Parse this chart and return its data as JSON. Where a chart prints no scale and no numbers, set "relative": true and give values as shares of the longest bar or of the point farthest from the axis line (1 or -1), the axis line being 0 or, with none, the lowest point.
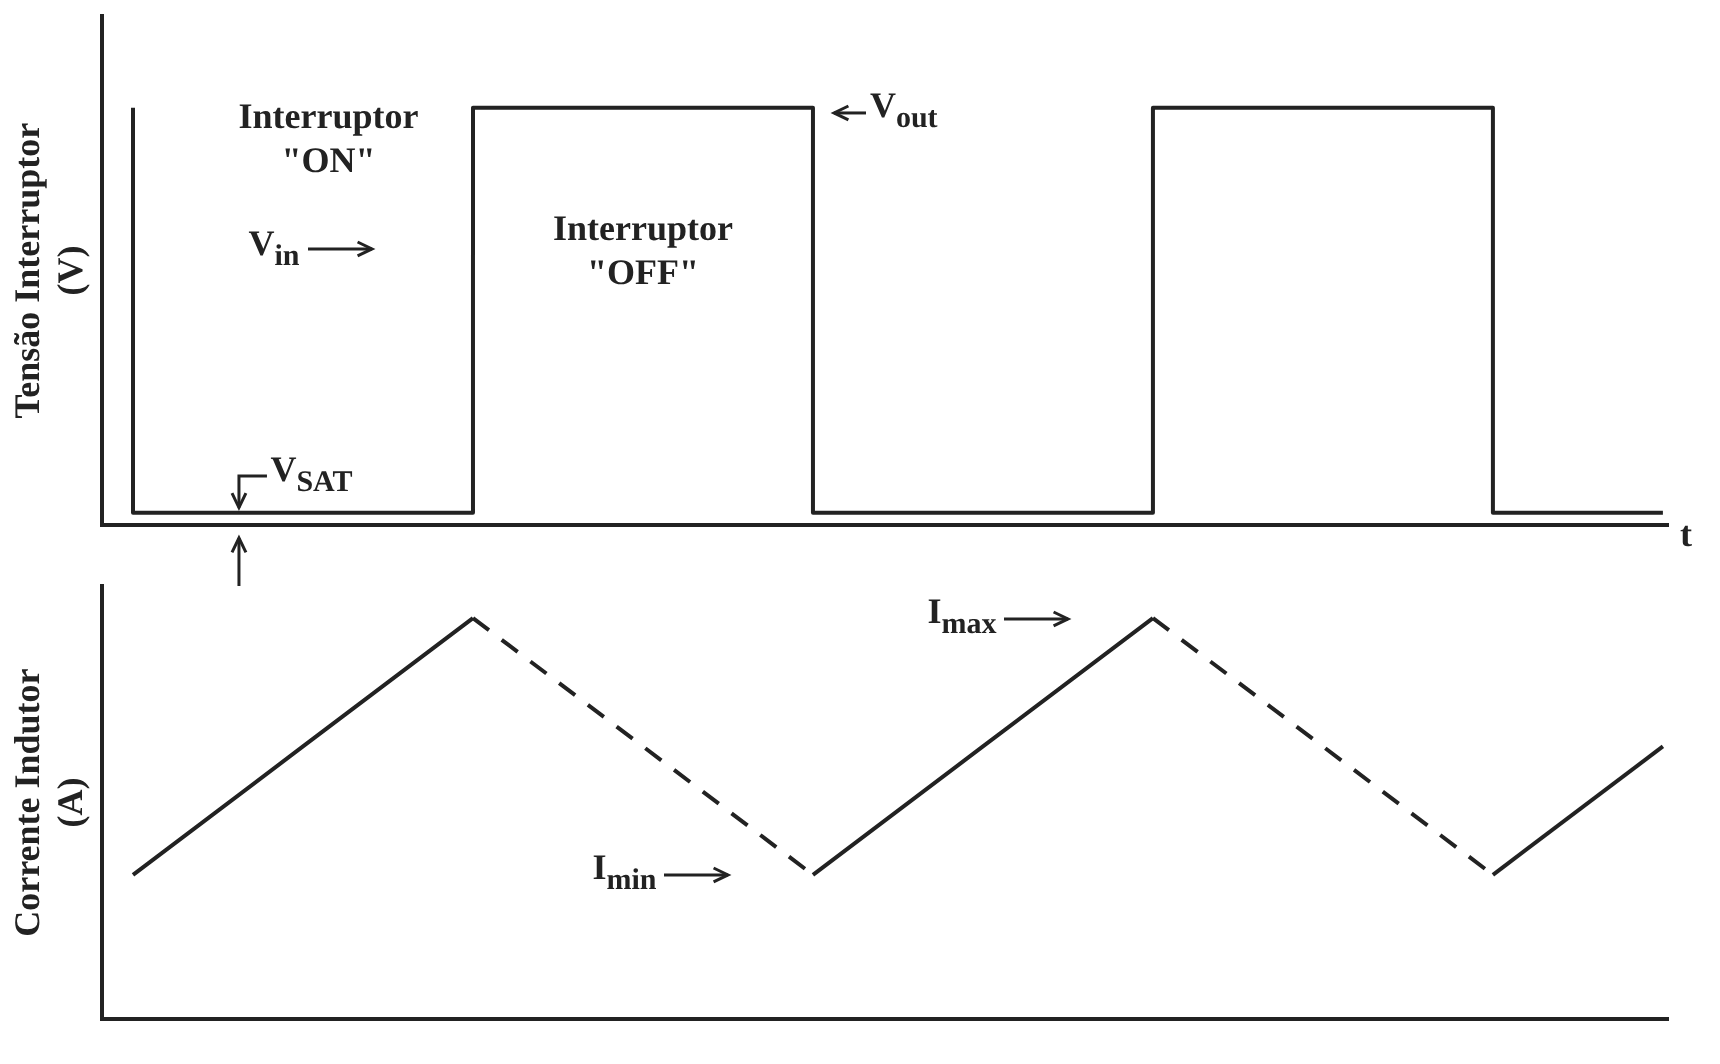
{
  "chart_data": [
    {
      "type": "step",
      "ylabel": "Tensão Interruptor\n(V)",
      "xlabel": "t",
      "relative": true,
      "grid": false,
      "legend": false,
      "categories": [
        null,
        null,
        null,
        null,
        null,
        null,
        null,
        null,
        null,
        null
      ],
      "series": [
        {
          "color": "#222222",
          "values": [
            1,
            0.03,
            0.03,
            1,
            1,
            0.03,
            0.03,
            1,
            1,
            0.03
          ]
        }
      ],
      "annotations": [
        "Interruptor\n\"ON\"",
        "Interruptor\n\"OFF\"",
        "V$_{in}$",
        "V$_{out}$",
        "V$_{SAT}$"
      ]
    },
    {
      "type": "line",
      "ylabel": "Corrente Indutor\n(A)",
      "relative": true,
      "grid": false,
      "legend": false,
      "categories": [
        null,
        null,
        null,
        null,
        null,
        null,
        null,
        null,
        null,
        null
      ],
      "series": [
        {
          "color": "#222222",
          "values": [
            0.36,
            0.68,
            1,
            0.68,
            0.36,
            0.68,
            1,
            0.68,
            0.36,
            0.68
          ]
        }
      ],
      "annotations": [
        "I$_{max}$",
        "I$_{min}$"
      ]
    }
  ]
}
